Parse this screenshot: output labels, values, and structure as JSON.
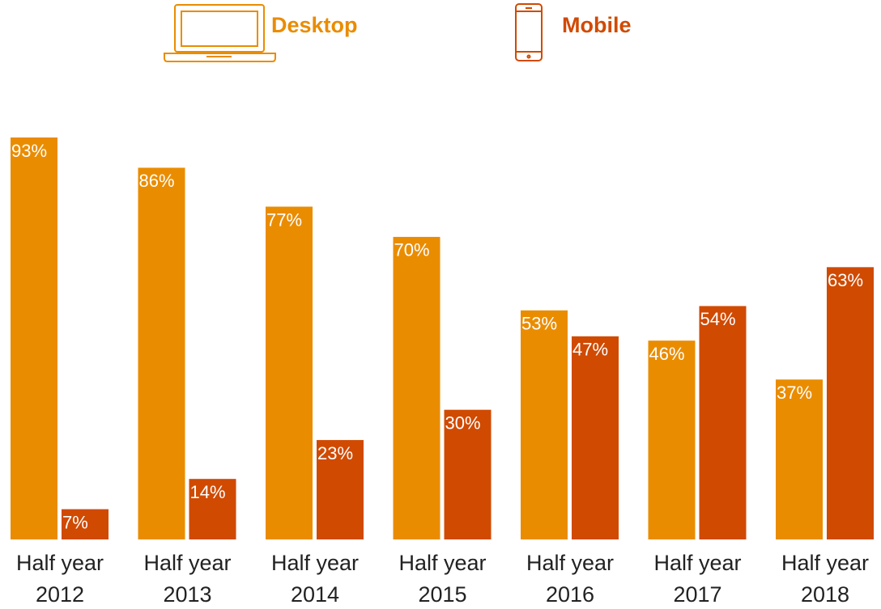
{
  "chart_data": {
    "type": "bar",
    "categories": [
      "Half year 2012",
      "Half year 2013",
      "Half year 2014",
      "Half year 2015",
      "Half year 2016",
      "Half year 2017",
      "Half year 2018"
    ],
    "series": [
      {
        "name": "Desktop",
        "color": "#ea8c00",
        "values": [
          93,
          86,
          77,
          70,
          53,
          46,
          37
        ],
        "value_labels": [
          "93%",
          "86%",
          "77%",
          "70%",
          "53%",
          "46%",
          "37%"
        ]
      },
      {
        "name": "Mobile",
        "color": "#d04a02",
        "values": [
          7,
          14,
          23,
          30,
          47,
          54,
          63
        ],
        "value_labels": [
          "7%",
          "14%",
          "23%",
          "30%",
          "47%",
          "54%",
          "63%"
        ]
      }
    ]
  }
}
